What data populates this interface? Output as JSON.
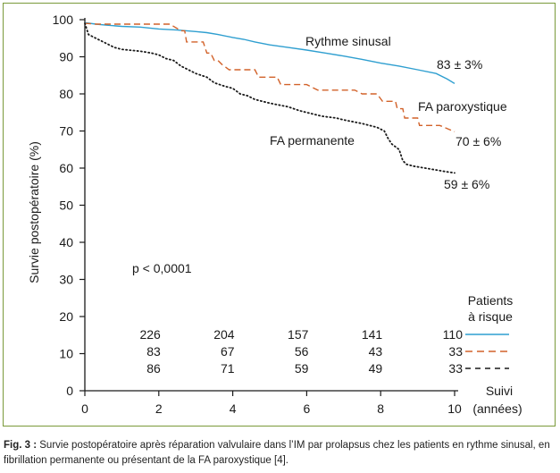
{
  "chart_data": {
    "type": "line",
    "ylabel": "Survie postopératoire (%)",
    "xlabel": [
      "Suivi",
      "(années)"
    ],
    "xlim": [
      0,
      10
    ],
    "ylim": [
      0,
      100
    ],
    "x_ticks": [
      0,
      2,
      4,
      6,
      8,
      10
    ],
    "y_ticks": [
      0,
      10,
      20,
      30,
      40,
      50,
      60,
      70,
      80,
      90,
      100
    ],
    "grid": false,
    "annotation": "p < 0,0001",
    "colors": {
      "sinus": "#2f9fd0",
      "parox": "#d2622a",
      "perm": "#1a1a1a"
    },
    "series": [
      {
        "name": "Rythme sinusal",
        "end_label": "83 ± 3%",
        "style": "solid",
        "points": [
          [
            0,
            99.2
          ],
          [
            0.3,
            98.8
          ],
          [
            0.6,
            98.5
          ],
          [
            1,
            98.2
          ],
          [
            1.5,
            98
          ],
          [
            2,
            97.5
          ],
          [
            2.5,
            97.2
          ],
          [
            3,
            96.8
          ],
          [
            3.3,
            96.5
          ],
          [
            3.6,
            96
          ],
          [
            4,
            95.2
          ],
          [
            4.3,
            94.7
          ],
          [
            4.6,
            94
          ],
          [
            5,
            93.2
          ],
          [
            5.5,
            92.5
          ],
          [
            6,
            91.8
          ],
          [
            6.5,
            91
          ],
          [
            7,
            90.2
          ],
          [
            7.5,
            89.3
          ],
          [
            8,
            88.3
          ],
          [
            8.5,
            87.5
          ],
          [
            9,
            86.5
          ],
          [
            9.5,
            85.5
          ],
          [
            9.8,
            84
          ],
          [
            10,
            82.8
          ]
        ]
      },
      {
        "name": "FA paroxystique",
        "end_label": "70 ± 6%",
        "style": "dashed",
        "points": [
          [
            0,
            99
          ],
          [
            0.3,
            98.8
          ],
          [
            1,
            98.8
          ],
          [
            2,
            98.8
          ],
          [
            2.3,
            98.8
          ],
          [
            2.6,
            97
          ],
          [
            2.7,
            97
          ],
          [
            2.75,
            94
          ],
          [
            3.2,
            94
          ],
          [
            3.3,
            91
          ],
          [
            3.4,
            91
          ],
          [
            3.5,
            89
          ],
          [
            3.6,
            89
          ],
          [
            3.7,
            88
          ],
          [
            3.9,
            86.5
          ],
          [
            4.6,
            86.5
          ],
          [
            4.7,
            84.5
          ],
          [
            5.2,
            84.5
          ],
          [
            5.3,
            82.5
          ],
          [
            5.8,
            82.5
          ],
          [
            6,
            82.5
          ],
          [
            6.3,
            81
          ],
          [
            7.3,
            81
          ],
          [
            7.5,
            80
          ],
          [
            7.9,
            80
          ],
          [
            8.05,
            78
          ],
          [
            8.4,
            78
          ],
          [
            8.45,
            76
          ],
          [
            8.6,
            76
          ],
          [
            8.65,
            73.5
          ],
          [
            9,
            73.5
          ],
          [
            9.05,
            71.5
          ],
          [
            9.6,
            71.5
          ],
          [
            10,
            69.8
          ]
        ]
      },
      {
        "name": "FA permanente",
        "end_label": "59 ± 6%",
        "style": "dotted",
        "points": [
          [
            0,
            99
          ],
          [
            0.1,
            96
          ],
          [
            0.3,
            95
          ],
          [
            0.5,
            94
          ],
          [
            0.8,
            92.5
          ],
          [
            1,
            92
          ],
          [
            1.5,
            91.5
          ],
          [
            1.8,
            91
          ],
          [
            2,
            90.5
          ],
          [
            2.2,
            89.5
          ],
          [
            2.4,
            89
          ],
          [
            2.6,
            87.5
          ],
          [
            2.8,
            86.5
          ],
          [
            3,
            85.5
          ],
          [
            3.3,
            84.5
          ],
          [
            3.5,
            83
          ],
          [
            3.8,
            82
          ],
          [
            4,
            81.5
          ],
          [
            4.2,
            80
          ],
          [
            4.4,
            79.5
          ],
          [
            4.6,
            78.5
          ],
          [
            5,
            77.5
          ],
          [
            5.5,
            76.5
          ],
          [
            5.8,
            75.5
          ],
          [
            6,
            75
          ],
          [
            6.4,
            74
          ],
          [
            6.8,
            73.5
          ],
          [
            7,
            73
          ],
          [
            7.5,
            72
          ],
          [
            7.9,
            71
          ],
          [
            8.1,
            70
          ],
          [
            8.2,
            68
          ],
          [
            8.3,
            66.5
          ],
          [
            8.5,
            65
          ],
          [
            8.6,
            62
          ],
          [
            8.7,
            61
          ],
          [
            8.9,
            60.5
          ],
          [
            9.2,
            60
          ],
          [
            9.5,
            59.5
          ],
          [
            9.8,
            59
          ],
          [
            10,
            58.7
          ]
        ]
      }
    ],
    "at_risk": {
      "title": [
        "Patients",
        "à risque"
      ],
      "at_x": [
        2,
        4,
        6,
        8,
        10
      ],
      "rows": [
        {
          "series": "Rythme sinusal",
          "values": [
            "226",
            "204",
            "157",
            "141",
            "110"
          ]
        },
        {
          "series": "FA paroxystique",
          "values": [
            "83",
            "67",
            "56",
            "43",
            "33"
          ]
        },
        {
          "series": "FA permanente",
          "values": [
            "86",
            "71",
            "59",
            "49",
            "33"
          ]
        }
      ]
    }
  },
  "caption": {
    "label": "Fig. 3 :",
    "text": " Survie postopératoire après réparation valvulaire dans l’IM par prolapsus chez les patients en rythme sinusal, en fibrillation permanente ou présentant de la FA paroxystique [4]."
  }
}
